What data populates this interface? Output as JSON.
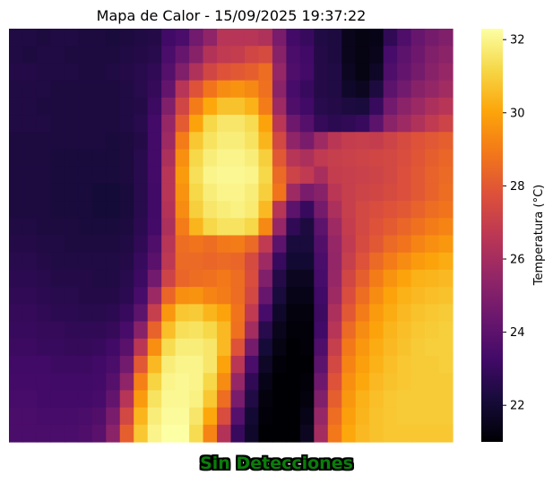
{
  "chart_data": {
    "type": "heatmap",
    "title": "Mapa de Calor - 15/09/2025 19:37:22",
    "colorbar": {
      "label": "Temperatura (°C)",
      "ticks": [
        22,
        24,
        26,
        28,
        30,
        32
      ],
      "vmin": 21.0,
      "vmax": 32.3
    },
    "colormap": "inferno",
    "axes_visible": false,
    "grid": false,
    "rows": 24,
    "cols": 32,
    "values": [
      [
        22.4,
        22.4,
        22.3,
        22.4,
        22.4,
        22.3,
        22.3,
        22.2,
        22.3,
        22.4,
        22.5,
        23.2,
        23.5,
        24.6,
        25.4,
        26.5,
        26.5,
        26.5,
        26.3,
        24.8,
        23.3,
        23.0,
        22.4,
        22.3,
        21.5,
        21.3,
        21.4,
        22.8,
        23.6,
        24.3,
        24.7,
        25.0
      ],
      [
        22.4,
        22.3,
        22.4,
        22.4,
        22.3,
        22.3,
        22.3,
        22.3,
        22.4,
        22.5,
        22.6,
        23.5,
        24.3,
        25.2,
        26.4,
        26.8,
        26.9,
        27.3,
        27.5,
        25.2,
        23.5,
        23.2,
        22.5,
        22.3,
        21.5,
        21.3,
        21.5,
        23.4,
        24.0,
        24.5,
        25.0,
        25.3
      ],
      [
        22.5,
        22.5,
        22.4,
        22.4,
        22.4,
        22.3,
        22.3,
        22.4,
        22.5,
        22.6,
        22.8,
        23.8,
        25.0,
        26.3,
        27.3,
        27.8,
        28.0,
        28.2,
        28.6,
        25.6,
        23.6,
        23.3,
        22.5,
        22.4,
        21.6,
        21.3,
        21.7,
        23.6,
        24.2,
        24.7,
        25.2,
        25.6
      ],
      [
        22.4,
        22.4,
        22.4,
        22.3,
        22.3,
        22.3,
        22.3,
        22.3,
        22.4,
        22.6,
        22.9,
        24.2,
        26.5,
        27.8,
        28.8,
        29.4,
        29.6,
        29.3,
        28.7,
        25.3,
        23.4,
        23.0,
        22.5,
        22.4,
        21.8,
        21.6,
        22.3,
        24.0,
        24.6,
        25.2,
        25.5,
        25.9
      ],
      [
        22.4,
        22.4,
        22.3,
        22.3,
        22.3,
        22.3,
        22.3,
        22.3,
        22.4,
        22.5,
        23.1,
        25.0,
        27.3,
        29.0,
        30.1,
        30.7,
        30.7,
        30.3,
        29.0,
        25.8,
        23.6,
        23.2,
        22.6,
        22.5,
        22.3,
        22.2,
        23.0,
        24.6,
        25.3,
        25.7,
        26.2,
        26.5
      ],
      [
        22.4,
        22.4,
        22.4,
        22.3,
        22.3,
        22.3,
        22.3,
        22.3,
        22.4,
        22.6,
        23.3,
        25.6,
        28.1,
        30.0,
        31.2,
        31.6,
        31.6,
        31.3,
        30.0,
        26.6,
        24.5,
        23.8,
        22.9,
        22.7,
        22.8,
        23.0,
        24.0,
        25.3,
        25.8,
        26.3,
        26.8,
        27.2
      ],
      [
        22.3,
        22.3,
        22.3,
        22.3,
        22.3,
        22.3,
        22.3,
        22.2,
        22.3,
        22.5,
        23.3,
        25.8,
        29.0,
        30.8,
        31.5,
        31.8,
        31.8,
        31.5,
        30.4,
        27.4,
        25.4,
        24.8,
        25.8,
        26.6,
        26.9,
        27.0,
        26.9,
        27.2,
        27.5,
        27.8,
        28.0,
        28.2
      ],
      [
        22.3,
        22.3,
        22.3,
        22.2,
        22.2,
        22.2,
        22.2,
        22.2,
        22.3,
        22.6,
        23.3,
        26.2,
        29.5,
        31.2,
        31.8,
        32.0,
        32.0,
        31.8,
        31.0,
        28.0,
        26.5,
        26.2,
        26.8,
        27.0,
        27.1,
        27.2,
        27.3,
        27.4,
        27.6,
        27.9,
        28.2,
        28.4
      ],
      [
        22.3,
        22.3,
        22.3,
        22.2,
        22.2,
        22.2,
        22.2,
        22.2,
        22.3,
        22.6,
        23.3,
        26.5,
        29.8,
        31.4,
        32.0,
        32.1,
        32.1,
        32.0,
        31.2,
        28.5,
        27.2,
        26.8,
        26.1,
        26.9,
        27.0,
        27.1,
        27.2,
        27.4,
        27.7,
        28.0,
        28.3,
        28.5
      ],
      [
        22.3,
        22.3,
        22.3,
        22.2,
        22.2,
        22.2,
        22.1,
        22.1,
        22.2,
        22.6,
        23.2,
        26.5,
        29.6,
        31.2,
        31.8,
        32.0,
        32.0,
        31.8,
        31.0,
        28.8,
        25.8,
        24.8,
        25.2,
        26.6,
        27.0,
        27.2,
        27.3,
        27.5,
        27.7,
        28.0,
        28.3,
        28.6
      ],
      [
        22.3,
        22.3,
        22.3,
        22.2,
        22.2,
        22.2,
        22.1,
        22.1,
        22.2,
        22.6,
        23.2,
        26.4,
        29.4,
        31.0,
        31.6,
        31.8,
        31.9,
        31.7,
        30.5,
        26.5,
        24.0,
        23.0,
        24.7,
        26.2,
        27.0,
        27.4,
        27.6,
        27.8,
        28.0,
        28.3,
        28.6,
        28.8
      ],
      [
        22.4,
        22.4,
        22.3,
        22.3,
        22.3,
        22.2,
        22.2,
        22.2,
        22.3,
        22.7,
        23.3,
        26.2,
        29.0,
        30.4,
        31.2,
        31.5,
        31.5,
        31.2,
        29.3,
        25.6,
        22.8,
        22.3,
        24.0,
        25.8,
        26.9,
        27.4,
        27.8,
        28.1,
        28.4,
        28.7,
        29.0,
        29.2
      ],
      [
        22.5,
        22.5,
        22.4,
        22.4,
        22.3,
        22.3,
        22.3,
        22.3,
        22.4,
        22.8,
        23.6,
        26.5,
        28.6,
        28.8,
        28.6,
        28.9,
        29.0,
        28.5,
        26.8,
        24.0,
        22.2,
        22.2,
        23.7,
        25.6,
        26.8,
        27.5,
        28.0,
        28.5,
        28.8,
        29.2,
        29.5,
        29.7
      ],
      [
        22.6,
        22.6,
        22.5,
        22.4,
        22.4,
        22.4,
        22.4,
        22.4,
        22.5,
        23.0,
        23.9,
        26.7,
        28.5,
        28.5,
        28.4,
        28.5,
        28.4,
        27.5,
        25.8,
        23.0,
        22.0,
        22.0,
        23.5,
        25.5,
        27.0,
        27.8,
        28.5,
        29.0,
        29.4,
        29.8,
        30.0,
        30.2
      ],
      [
        22.7,
        22.7,
        22.6,
        22.5,
        22.5,
        22.5,
        22.4,
        22.4,
        22.6,
        23.1,
        24.6,
        27.2,
        28.4,
        28.6,
        28.7,
        28.9,
        28.6,
        27.6,
        25.0,
        22.5,
        21.6,
        21.6,
        23.4,
        25.6,
        27.3,
        28.2,
        29.0,
        29.6,
        30.0,
        30.3,
        30.4,
        30.5
      ],
      [
        22.8,
        22.8,
        22.7,
        22.6,
        22.6,
        22.5,
        22.5,
        22.5,
        22.7,
        23.4,
        25.7,
        28.4,
        29.5,
        29.6,
        29.2,
        29.0,
        28.6,
        27.4,
        24.3,
        22.2,
        21.4,
        21.4,
        23.2,
        25.8,
        27.6,
        28.6,
        29.4,
        30.0,
        30.3,
        30.5,
        30.6,
        30.7
      ],
      [
        22.9,
        22.9,
        22.8,
        22.7,
        22.7,
        22.6,
        22.6,
        22.7,
        23.0,
        24.0,
        27.0,
        29.7,
        30.8,
        30.9,
        30.4,
        30.0,
        28.8,
        26.8,
        23.4,
        21.8,
        21.2,
        21.2,
        23.1,
        26.2,
        28.0,
        29.0,
        29.8,
        30.2,
        30.5,
        30.7,
        30.8,
        30.9
      ],
      [
        23.0,
        23.0,
        22.9,
        22.9,
        22.8,
        22.8,
        22.8,
        22.9,
        23.4,
        25.2,
        28.3,
        30.6,
        31.4,
        31.5,
        31.2,
        30.5,
        28.7,
        26.0,
        22.6,
        21.5,
        21.1,
        21.1,
        23.2,
        26.5,
        28.5,
        29.4,
        30.0,
        30.4,
        30.6,
        30.8,
        30.9,
        31.0
      ],
      [
        23.1,
        23.1,
        23.0,
        23.0,
        22.9,
        22.9,
        23.0,
        23.2,
        23.9,
        26.6,
        29.5,
        31.3,
        31.8,
        31.8,
        31.6,
        30.5,
        27.8,
        24.7,
        22.1,
        21.3,
        21.0,
        21.1,
        23.6,
        27.0,
        28.9,
        29.7,
        30.2,
        30.5,
        30.7,
        30.9,
        31.0,
        31.0
      ],
      [
        23.2,
        23.2,
        23.2,
        23.1,
        23.1,
        23.1,
        23.2,
        23.5,
        24.6,
        28.0,
        30.5,
        31.8,
        32.0,
        32.0,
        31.6,
        30.0,
        26.6,
        23.5,
        21.7,
        21.1,
        21.0,
        21.0,
        24.0,
        27.4,
        29.2,
        29.9,
        30.3,
        30.6,
        30.8,
        30.9,
        30.9,
        31.0
      ],
      [
        23.3,
        23.3,
        23.3,
        23.2,
        23.2,
        23.2,
        23.3,
        23.8,
        25.4,
        29.1,
        31.1,
        32.0,
        32.1,
        32.0,
        31.2,
        29.4,
        25.6,
        22.8,
        21.4,
        21.0,
        20.9,
        21.1,
        24.5,
        27.8,
        29.5,
        30.1,
        30.5,
        30.7,
        30.8,
        30.9,
        30.9,
        30.9
      ],
      [
        23.4,
        23.4,
        23.3,
        23.3,
        23.3,
        23.3,
        23.4,
        24.2,
        26.5,
        29.8,
        31.5,
        32.1,
        32.1,
        31.9,
        30.8,
        28.6,
        24.8,
        22.4,
        21.2,
        20.9,
        20.9,
        21.2,
        25.0,
        28.2,
        29.7,
        30.3,
        30.6,
        30.8,
        30.9,
        30.9,
        30.9,
        30.9
      ],
      [
        23.5,
        23.5,
        23.4,
        23.4,
        23.4,
        23.5,
        23.7,
        24.8,
        27.4,
        30.4,
        31.8,
        32.2,
        32.2,
        31.6,
        30.1,
        27.6,
        23.8,
        22.0,
        21.1,
        20.9,
        20.9,
        21.4,
        25.6,
        28.6,
        29.9,
        30.4,
        30.7,
        30.8,
        30.9,
        30.9,
        30.9,
        30.9
      ],
      [
        23.5,
        23.5,
        23.5,
        23.5,
        23.5,
        23.6,
        23.9,
        25.3,
        28.2,
        30.8,
        32.0,
        32.3,
        32.3,
        31.3,
        29.2,
        26.4,
        23.0,
        21.8,
        21.0,
        20.9,
        21.0,
        21.6,
        26.0,
        28.9,
        30.1,
        30.5,
        30.7,
        30.8,
        30.8,
        30.8,
        30.8,
        30.8
      ]
    ]
  },
  "status": {
    "text": "Sin Detecciones",
    "color": "#0a7d0a"
  }
}
